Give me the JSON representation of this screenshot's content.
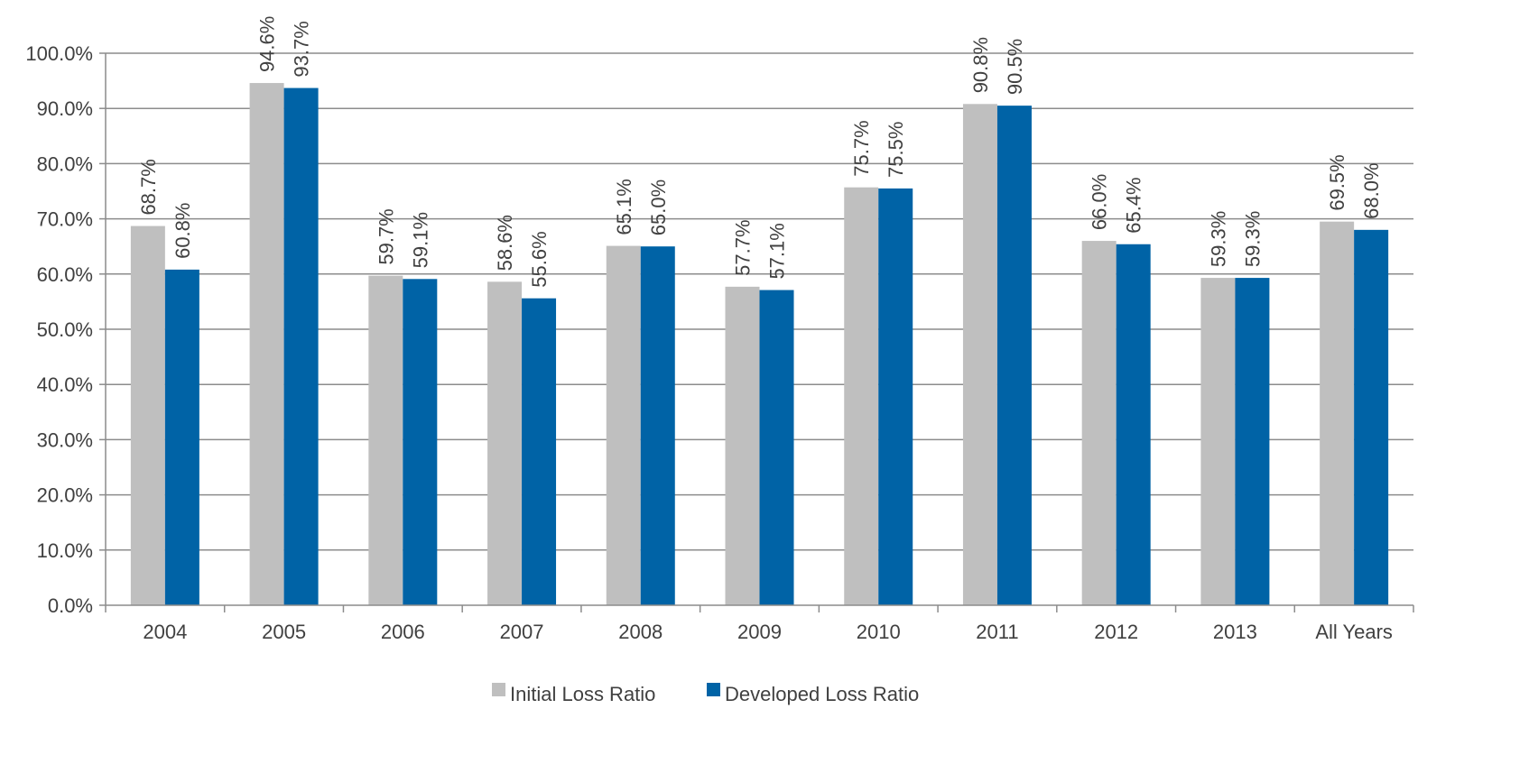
{
  "chart_data": {
    "type": "bar",
    "categories": [
      "2004",
      "2005",
      "2006",
      "2007",
      "2008",
      "2009",
      "2010",
      "2011",
      "2012",
      "2013",
      "All Years"
    ],
    "series": [
      {
        "name": "Initial Loss Ratio",
        "color": "#bfbfbf",
        "values": [
          68.7,
          94.6,
          59.7,
          58.6,
          65.1,
          57.7,
          75.7,
          90.8,
          66.0,
          59.3,
          69.5
        ],
        "labels": [
          "68.7%",
          "94.6%",
          "59.7%",
          "58.6%",
          "65.1%",
          "57.7%",
          "75.7%",
          "90.8%",
          "66.0%",
          "59.3%",
          "69.5%"
        ]
      },
      {
        "name": "Developed Loss Ratio",
        "color": "#0063a6",
        "values": [
          60.8,
          93.7,
          59.1,
          55.6,
          65.0,
          57.1,
          75.5,
          90.5,
          65.4,
          59.3,
          68.0
        ],
        "labels": [
          "60.8%",
          "93.7%",
          "59.1%",
          "55.6%",
          "65.0%",
          "57.1%",
          "75.5%",
          "90.5%",
          "65.4%",
          "59.3%",
          "68.0%"
        ]
      }
    ],
    "ylim": [
      0,
      100
    ],
    "yticks": [
      "0.0%",
      "10.0%",
      "20.0%",
      "30.0%",
      "40.0%",
      "50.0%",
      "60.0%",
      "70.0%",
      "80.0%",
      "90.0%",
      "100.0%"
    ],
    "grid": true,
    "legend": "bottom-center",
    "title": "",
    "xlabel": "",
    "ylabel": ""
  }
}
